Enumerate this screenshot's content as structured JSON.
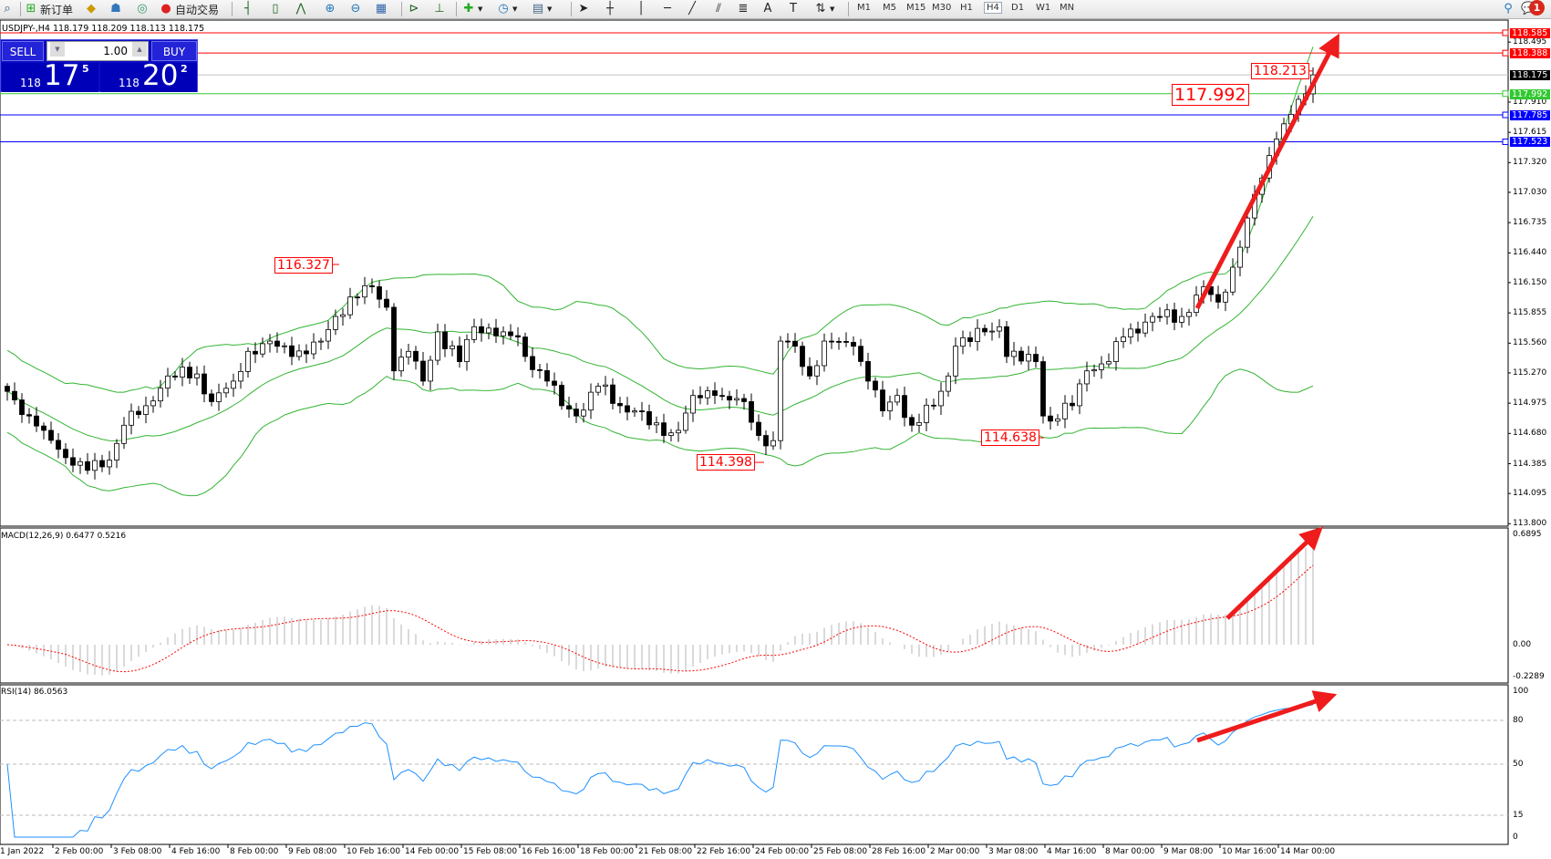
{
  "toolbar": {
    "new_order": "新订单",
    "auto_trading": "自动交易",
    "timeframes": [
      "M1",
      "M5",
      "M15",
      "M30",
      "H1",
      "H4",
      "D1",
      "W1",
      "MN"
    ],
    "notification_count": "1",
    "icons": [
      "new-order-icon",
      "metaeditor-icon",
      "navigator-icon",
      "signals-icon",
      "auto-trading-icon",
      "bar-chart-icon",
      "candlestick-icon",
      "line-chart-icon",
      "zoom-in-icon",
      "zoom-out-icon",
      "tile-windows-icon",
      "auto-scroll-icon",
      "chart-shift-icon",
      "indicators-icon",
      "periods-icon",
      "templates-icon",
      "cursor-icon",
      "crosshair-icon",
      "vertical-line-icon",
      "horizontal-line-icon",
      "trendline-icon",
      "equidistant-channel-icon",
      "fibonacci-icon",
      "text-icon",
      "text-label-icon",
      "arrows-icon",
      "search-icon",
      "notifications-icon"
    ]
  },
  "chart": {
    "title": "USDJPY-,H4  118.179 118.209 118.113 118.175",
    "sell_label": "SELL",
    "buy_label": "BUY",
    "lot": "1.00",
    "sell": {
      "small": "118",
      "big": "17",
      "sup": "5"
    },
    "buy": {
      "small": "118",
      "big": "20",
      "sup": "2"
    }
  },
  "price_lines": [
    {
      "price": "118.585",
      "color": "#ff0000"
    },
    {
      "price": "118.388",
      "color": "#ff0000"
    },
    {
      "price": "118.175",
      "color": "#000000",
      "line": "#c0c0c0"
    },
    {
      "price": "117.992",
      "color": "#32c832"
    },
    {
      "price": "117.785",
      "color": "#0000ff"
    },
    {
      "price": "117.523",
      "color": "#0000ff"
    }
  ],
  "price_axis": [
    "118.495",
    "117.910",
    "117.615",
    "117.320",
    "117.030",
    "116.735",
    "116.440",
    "116.150",
    "115.855",
    "115.560",
    "115.270",
    "114.975",
    "114.680",
    "114.385",
    "114.095",
    "113.800"
  ],
  "annotations": [
    "116.327",
    "114.398",
    "114.638",
    "117.992",
    "118.213"
  ],
  "macd": {
    "title": "MACD(12,26,9) 0.6477 0.5216",
    "axis": [
      "0.6895",
      "0.00",
      "-0.2289"
    ]
  },
  "rsi": {
    "title": "RSI(14) 86.0563",
    "axis": [
      "100",
      "80",
      "50",
      "15",
      "0"
    ]
  },
  "time_axis": [
    "1 Jan 2022",
    "2 Feb 00:00",
    "3 Feb 08:00",
    "4 Feb 16:00",
    "8 Feb 00:00",
    "9 Feb 08:00",
    "10 Feb 16:00",
    "14 Feb 00:00",
    "15 Feb 08:00",
    "16 Feb 16:00",
    "18 Feb 00:00",
    "21 Feb 08:00",
    "22 Feb 16:00",
    "24 Feb 00:00",
    "25 Feb 08:00",
    "28 Feb 16:00",
    "2 Mar 00:00",
    "3 Mar 08:00",
    "4 Mar 16:00",
    "8 Mar 00:00",
    "9 Mar 08:00",
    "10 Mar 16:00",
    "14 Mar 00:00"
  ],
  "chart_data": {
    "type": "candlestick",
    "symbol": "USDJPY-",
    "timeframe": "H4",
    "ylim": [
      113.8,
      118.585
    ],
    "indicators": [
      "Bollinger Bands(20,2)",
      "MACD(12,26,9)",
      "RSI(14)"
    ],
    "colors": {
      "bands": "#32b432",
      "macd_signal": "#ff0000",
      "macd_hist": "#c0c0c0",
      "rsi": "#1e90ff",
      "arrows": "#ee1c1c"
    },
    "close_keypoints": [
      [
        0,
        115.09
      ],
      [
        3,
        114.85
      ],
      [
        5,
        114.71
      ],
      [
        9,
        114.37
      ],
      [
        11,
        114.32
      ],
      [
        14,
        114.42
      ],
      [
        16,
        114.76
      ],
      [
        19,
        114.95
      ],
      [
        22,
        115.24
      ],
      [
        26,
        115.26
      ],
      [
        28,
        114.99
      ],
      [
        31,
        115.19
      ],
      [
        33,
        115.48
      ],
      [
        36,
        115.58
      ],
      [
        39,
        115.43
      ],
      [
        43,
        115.58
      ],
      [
        45,
        115.82
      ],
      [
        47,
        116.01
      ],
      [
        50,
        116.11
      ],
      [
        52,
        115.91
      ],
      [
        53,
        115.29
      ],
      [
        55,
        115.48
      ],
      [
        57,
        115.19
      ],
      [
        59,
        115.67
      ],
      [
        62,
        115.38
      ],
      [
        64,
        115.72
      ],
      [
        68,
        115.67
      ],
      [
        70,
        115.62
      ],
      [
        71,
        115.43
      ],
      [
        74,
        115.19
      ],
      [
        76,
        114.95
      ],
      [
        78,
        114.85
      ],
      [
        81,
        115.14
      ],
      [
        84,
        114.95
      ],
      [
        86,
        114.9
      ],
      [
        90,
        114.66
      ],
      [
        92,
        114.71
      ],
      [
        94,
        115.05
      ],
      [
        97,
        115.05
      ],
      [
        101,
        114.99
      ],
      [
        103,
        114.66
      ],
      [
        105,
        114.61
      ],
      [
        106,
        115.58
      ],
      [
        108,
        115.53
      ],
      [
        110,
        115.24
      ],
      [
        112,
        115.58
      ],
      [
        116,
        115.53
      ],
      [
        118,
        115.19
      ],
      [
        120,
        114.9
      ],
      [
        122,
        115.05
      ],
      [
        124,
        114.76
      ],
      [
        127,
        114.95
      ],
      [
        129,
        115.24
      ],
      [
        130,
        115.53
      ],
      [
        134,
        115.67
      ],
      [
        136,
        115.72
      ],
      [
        137,
        115.43
      ],
      [
        141,
        115.38
      ],
      [
        142,
        114.85
      ],
      [
        143,
        114.8
      ],
      [
        146,
        114.95
      ],
      [
        148,
        115.29
      ],
      [
        151,
        115.38
      ],
      [
        153,
        115.62
      ],
      [
        157,
        115.82
      ],
      [
        161,
        115.82
      ],
      [
        164,
        116.11
      ],
      [
        166,
        115.96
      ],
      [
        168,
        116.3
      ],
      [
        170,
        116.78
      ],
      [
        172,
        117.17
      ],
      [
        174,
        117.55
      ],
      [
        176,
        117.79
      ],
      [
        178,
        117.99
      ],
      [
        179,
        118.175
      ]
    ]
  }
}
